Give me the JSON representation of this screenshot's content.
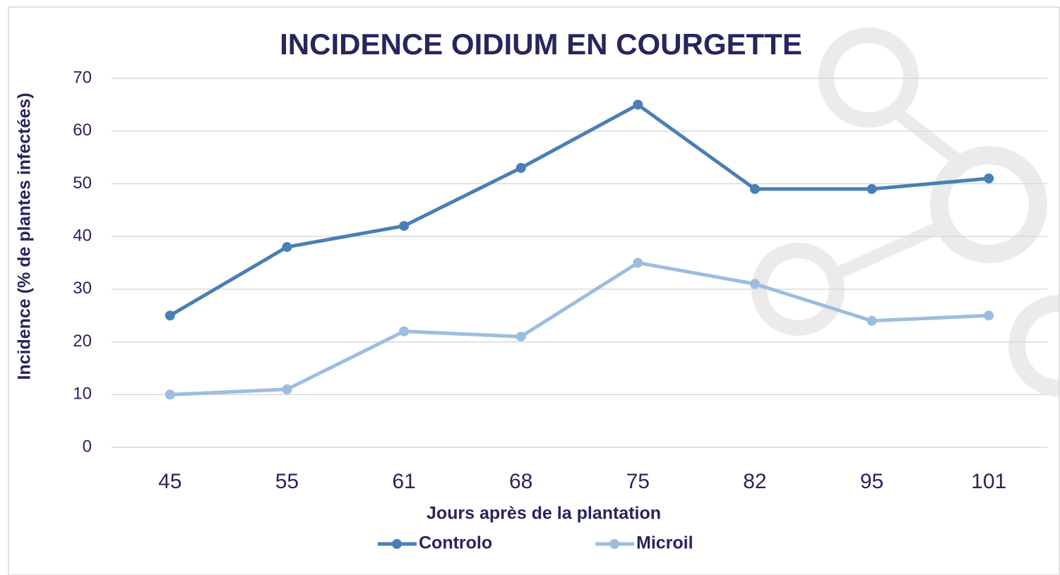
{
  "chart_data": {
    "type": "line",
    "title": "INCIDENCE OIDIUM EN COURGETTE",
    "x_label": "Jours après de la plantation",
    "y_label": "Incidence (% de plantes  infectées)",
    "categories": [
      "45",
      "55",
      "61",
      "68",
      "75",
      "82",
      "95",
      "101"
    ],
    "series": [
      {
        "name": "Controlo",
        "color": "#4a7fb5",
        "values": [
          25,
          38,
          42,
          53,
          65,
          49,
          49,
          51
        ]
      },
      {
        "name": "Microil",
        "color": "#9dbde0",
        "values": [
          10,
          11,
          22,
          21,
          35,
          31,
          24,
          25
        ]
      }
    ],
    "ylim": [
      0,
      70
    ],
    "yticks": [
      0,
      10,
      20,
      30,
      40,
      50,
      60,
      70
    ],
    "grid": true,
    "legend": "bottom"
  }
}
